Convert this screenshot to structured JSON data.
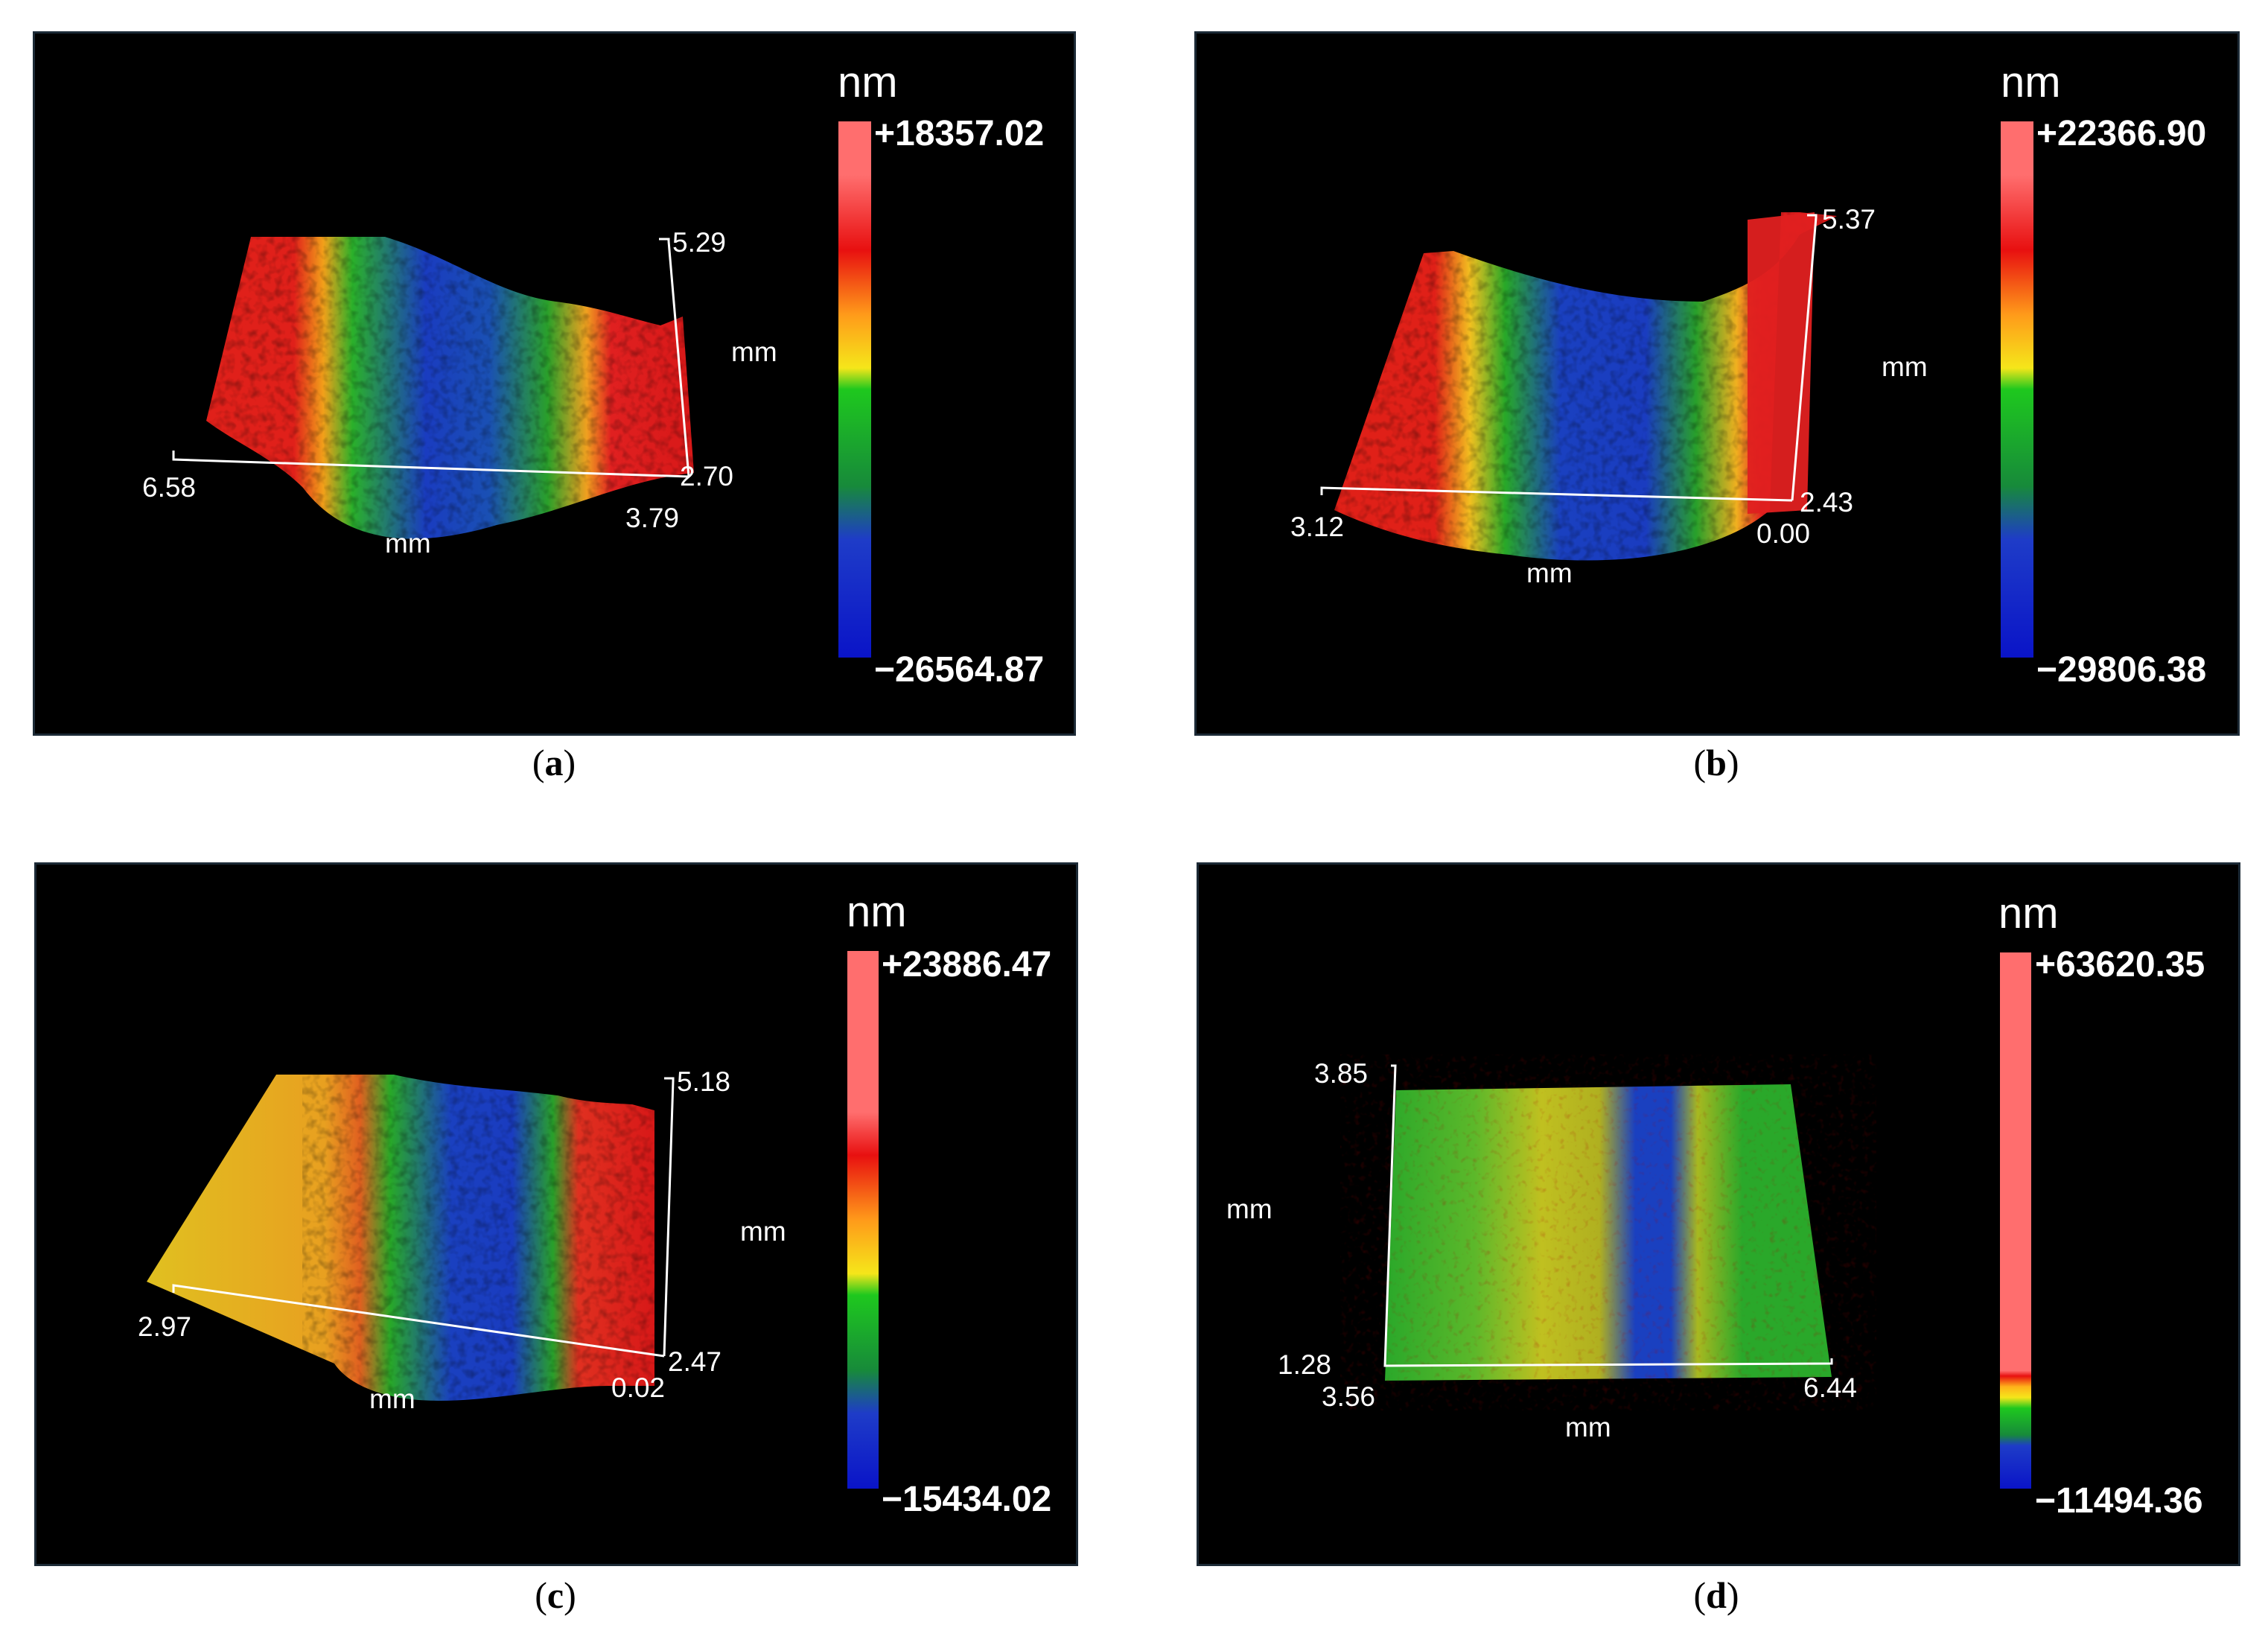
{
  "panels": {
    "a": {
      "caption_letter": "a",
      "colorbar": {
        "unit": "nm",
        "max": "+18357.02",
        "min": "−26564.87"
      },
      "axis": {
        "x_start": "6.58",
        "x_end": "3.79",
        "y_start": "2.70",
        "y_end": "5.29",
        "x_unit": "mm",
        "y_unit": "mm"
      }
    },
    "b": {
      "caption_letter": "b",
      "colorbar": {
        "unit": "nm",
        "max": "+22366.90",
        "min": "−29806.38"
      },
      "axis": {
        "x_start": "3.12",
        "x_end": "0.00",
        "y_start": "2.43",
        "y_end": "5.37",
        "x_unit": "mm",
        "y_unit": "mm"
      }
    },
    "c": {
      "caption_letter": "c",
      "colorbar": {
        "unit": "nm",
        "max": "+23886.47",
        "min": "−15434.02"
      },
      "axis": {
        "x_start": "2.97",
        "x_end": "0.02",
        "y_start": "2.47",
        "y_end": "5.18",
        "x_unit": "mm",
        "y_unit": "mm"
      }
    },
    "d": {
      "caption_letter": "d",
      "colorbar": {
        "unit": "nm",
        "max": "+63620.35",
        "min": "−11494.36"
      },
      "axis": {
        "x_start": "3.56",
        "x_end": "6.44",
        "y_start": "1.28",
        "y_end": "3.85",
        "x_unit": "mm",
        "y_unit": "mm"
      }
    }
  },
  "colors": {
    "high": "#ff6b6b",
    "red": "#e81e1e",
    "yellow": "#f3e21a",
    "green": "#1aa51a",
    "blue": "#1c2fc4",
    "background": "#000000"
  }
}
